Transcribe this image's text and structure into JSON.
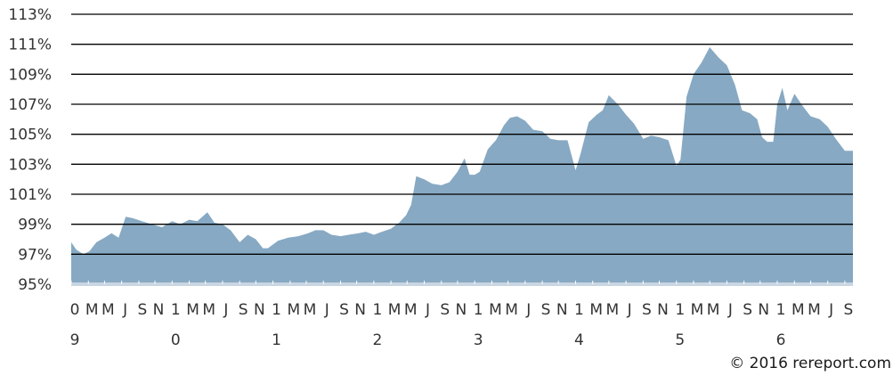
{
  "chart_data": {
    "type": "area",
    "ylim": [
      95,
      113
    ],
    "yticks": [
      95,
      97,
      99,
      101,
      103,
      105,
      107,
      109,
      111,
      113
    ],
    "ytick_labels": [
      "95%",
      "97%",
      "99%",
      "101%",
      "103%",
      "105%",
      "107%",
      "109%",
      "111%",
      "113%"
    ],
    "grid": true,
    "xlim": [
      2009.0,
      2016.75
    ],
    "x_month_labels": [
      {
        "x": 2009.0,
        "label": "0"
      },
      {
        "x": 2009.17,
        "label": "M"
      },
      {
        "x": 2009.33,
        "label": "M"
      },
      {
        "x": 2009.5,
        "label": "J"
      },
      {
        "x": 2009.67,
        "label": "S"
      },
      {
        "x": 2009.83,
        "label": "N"
      },
      {
        "x": 2010.0,
        "label": "1"
      },
      {
        "x": 2010.17,
        "label": "M"
      },
      {
        "x": 2010.33,
        "label": "M"
      },
      {
        "x": 2010.5,
        "label": "J"
      },
      {
        "x": 2010.67,
        "label": "S"
      },
      {
        "x": 2010.83,
        "label": "N"
      },
      {
        "x": 2011.0,
        "label": "1"
      },
      {
        "x": 2011.17,
        "label": "M"
      },
      {
        "x": 2011.33,
        "label": "M"
      },
      {
        "x": 2011.5,
        "label": "J"
      },
      {
        "x": 2011.67,
        "label": "S"
      },
      {
        "x": 2011.83,
        "label": "N"
      },
      {
        "x": 2012.0,
        "label": "1"
      },
      {
        "x": 2012.17,
        "label": "M"
      },
      {
        "x": 2012.33,
        "label": "M"
      },
      {
        "x": 2012.5,
        "label": "J"
      },
      {
        "x": 2012.67,
        "label": "S"
      },
      {
        "x": 2012.83,
        "label": "N"
      },
      {
        "x": 2013.0,
        "label": "1"
      },
      {
        "x": 2013.17,
        "label": "M"
      },
      {
        "x": 2013.33,
        "label": "M"
      },
      {
        "x": 2013.5,
        "label": "J"
      },
      {
        "x": 2013.67,
        "label": "S"
      },
      {
        "x": 2013.83,
        "label": "N"
      },
      {
        "x": 2014.0,
        "label": "1"
      },
      {
        "x": 2014.17,
        "label": "M"
      },
      {
        "x": 2014.33,
        "label": "M"
      },
      {
        "x": 2014.5,
        "label": "J"
      },
      {
        "x": 2014.67,
        "label": "S"
      },
      {
        "x": 2014.83,
        "label": "N"
      },
      {
        "x": 2015.0,
        "label": "1"
      },
      {
        "x": 2015.17,
        "label": "M"
      },
      {
        "x": 2015.33,
        "label": "M"
      },
      {
        "x": 2015.5,
        "label": "J"
      },
      {
        "x": 2015.67,
        "label": "S"
      },
      {
        "x": 2015.83,
        "label": "N"
      },
      {
        "x": 2016.0,
        "label": "1"
      },
      {
        "x": 2016.17,
        "label": "M"
      },
      {
        "x": 2016.33,
        "label": "M"
      },
      {
        "x": 2016.5,
        "label": "J"
      },
      {
        "x": 2016.67,
        "label": "S"
      }
    ],
    "x_year_labels": [
      {
        "x": 2009.0,
        "label": "9"
      },
      {
        "x": 2010.0,
        "label": "0"
      },
      {
        "x": 2011.0,
        "label": "1"
      },
      {
        "x": 2012.0,
        "label": "2"
      },
      {
        "x": 2013.0,
        "label": "3"
      },
      {
        "x": 2014.0,
        "label": "4"
      },
      {
        "x": 2015.0,
        "label": "5"
      },
      {
        "x": 2016.0,
        "label": "6"
      }
    ],
    "series": [
      {
        "color": "#87a9c3",
        "points": [
          [
            2009.0,
            97.8
          ],
          [
            2009.05,
            97.3
          ],
          [
            2009.12,
            97.0
          ],
          [
            2009.18,
            97.2
          ],
          [
            2009.25,
            97.8
          ],
          [
            2009.33,
            98.1
          ],
          [
            2009.4,
            98.4
          ],
          [
            2009.47,
            98.1
          ],
          [
            2009.54,
            99.5
          ],
          [
            2009.61,
            99.4
          ],
          [
            2009.7,
            99.2
          ],
          [
            2009.8,
            99.0
          ],
          [
            2009.9,
            98.8
          ],
          [
            2010.0,
            99.2
          ],
          [
            2010.08,
            99.0
          ],
          [
            2010.17,
            99.3
          ],
          [
            2010.25,
            99.2
          ],
          [
            2010.35,
            99.8
          ],
          [
            2010.42,
            99.1
          ],
          [
            2010.5,
            99.0
          ],
          [
            2010.58,
            98.6
          ],
          [
            2010.67,
            97.8
          ],
          [
            2010.75,
            98.3
          ],
          [
            2010.83,
            98.0
          ],
          [
            2010.9,
            97.4
          ],
          [
            2010.95,
            97.4
          ],
          [
            2011.05,
            97.9
          ],
          [
            2011.15,
            98.1
          ],
          [
            2011.25,
            98.2
          ],
          [
            2011.35,
            98.4
          ],
          [
            2011.42,
            98.6
          ],
          [
            2011.5,
            98.6
          ],
          [
            2011.58,
            98.3
          ],
          [
            2011.67,
            98.2
          ],
          [
            2011.75,
            98.3
          ],
          [
            2011.85,
            98.4
          ],
          [
            2011.92,
            98.5
          ],
          [
            2012.0,
            98.3
          ],
          [
            2012.08,
            98.5
          ],
          [
            2012.17,
            98.7
          ],
          [
            2012.25,
            99.1
          ],
          [
            2012.32,
            99.6
          ],
          [
            2012.37,
            100.3
          ],
          [
            2012.42,
            102.2
          ],
          [
            2012.5,
            102.0
          ],
          [
            2012.58,
            101.7
          ],
          [
            2012.67,
            101.6
          ],
          [
            2012.75,
            101.8
          ],
          [
            2012.83,
            102.5
          ],
          [
            2012.9,
            103.4
          ],
          [
            2012.95,
            102.3
          ],
          [
            2013.0,
            102.3
          ],
          [
            2013.05,
            102.5
          ],
          [
            2013.13,
            104.0
          ],
          [
            2013.21,
            104.6
          ],
          [
            2013.29,
            105.6
          ],
          [
            2013.35,
            106.1
          ],
          [
            2013.42,
            106.2
          ],
          [
            2013.5,
            105.9
          ],
          [
            2013.58,
            105.3
          ],
          [
            2013.67,
            105.2
          ],
          [
            2013.75,
            104.7
          ],
          [
            2013.83,
            104.6
          ],
          [
            2013.92,
            104.6
          ],
          [
            2014.0,
            102.6
          ],
          [
            2014.05,
            103.7
          ],
          [
            2014.13,
            105.8
          ],
          [
            2014.21,
            106.3
          ],
          [
            2014.27,
            106.6
          ],
          [
            2014.33,
            107.6
          ],
          [
            2014.42,
            107.0
          ],
          [
            2014.5,
            106.3
          ],
          [
            2014.58,
            105.7
          ],
          [
            2014.67,
            104.7
          ],
          [
            2014.75,
            104.9
          ],
          [
            2014.83,
            104.8
          ],
          [
            2014.92,
            104.6
          ],
          [
            2015.0,
            102.9
          ],
          [
            2015.04,
            103.3
          ],
          [
            2015.1,
            107.5
          ],
          [
            2015.17,
            109.0
          ],
          [
            2015.25,
            109.8
          ],
          [
            2015.33,
            110.8
          ],
          [
            2015.42,
            110.1
          ],
          [
            2015.5,
            109.6
          ],
          [
            2015.58,
            108.3
          ],
          [
            2015.65,
            106.6
          ],
          [
            2015.73,
            106.4
          ],
          [
            2015.8,
            106.0
          ],
          [
            2015.85,
            104.8
          ],
          [
            2015.9,
            104.5
          ],
          [
            2015.96,
            104.5
          ],
          [
            2016.0,
            107.0
          ],
          [
            2016.05,
            108.1
          ],
          [
            2016.1,
            106.6
          ],
          [
            2016.17,
            107.7
          ],
          [
            2016.25,
            106.9
          ],
          [
            2016.33,
            106.2
          ],
          [
            2016.42,
            106.0
          ],
          [
            2016.5,
            105.5
          ],
          [
            2016.58,
            104.7
          ],
          [
            2016.67,
            103.9
          ],
          [
            2016.75,
            103.9
          ]
        ]
      }
    ]
  },
  "footer": {
    "copyright": "© 2016 rereport.com"
  }
}
